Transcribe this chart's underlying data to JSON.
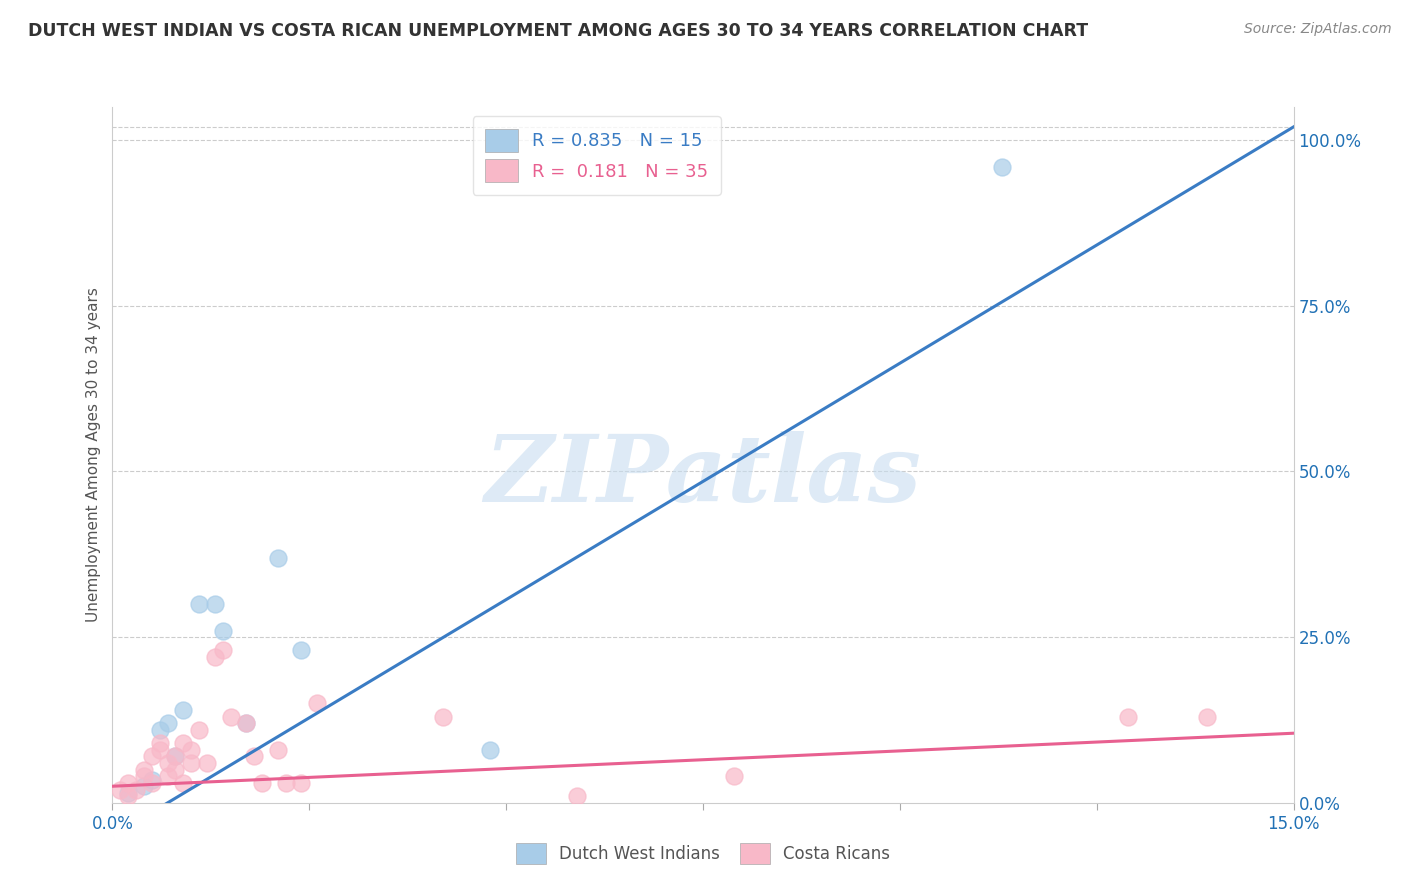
{
  "title": "DUTCH WEST INDIAN VS COSTA RICAN UNEMPLOYMENT AMONG AGES 30 TO 34 YEARS CORRELATION CHART",
  "source": "Source: ZipAtlas.com",
  "ylabel": "Unemployment Among Ages 30 to 34 years",
  "xmin": 0.0,
  "xmax": 0.15,
  "ymin": 0.0,
  "ymax": 1.05,
  "xticks": [
    0.0,
    0.025,
    0.05,
    0.075,
    0.1,
    0.125,
    0.15
  ],
  "yticks": [
    0.0,
    0.25,
    0.5,
    0.75,
    1.0
  ],
  "ytick_labels": [
    "0.0%",
    "25.0%",
    "50.0%",
    "75.0%",
    "100.0%"
  ],
  "xtick_labels": [
    "0.0%",
    "",
    "",
    "",
    "",
    "",
    "15.0%"
  ],
  "legend_blue_label": "R = 0.835   N = 15",
  "legend_pink_label": "R =  0.181   N = 35",
  "legend_bottom_blue": "Dutch West Indians",
  "legend_bottom_pink": "Costa Ricans",
  "blue_color": "#a8cce8",
  "pink_color": "#f8b8c8",
  "blue_line_color": "#3a7cc4",
  "pink_line_color": "#e86090",
  "watermark": "ZIPatlas",
  "dutch_x": [
    0.002,
    0.004,
    0.005,
    0.006,
    0.007,
    0.008,
    0.009,
    0.011,
    0.013,
    0.014,
    0.017,
    0.021,
    0.024,
    0.048,
    0.113
  ],
  "dutch_y": [
    0.015,
    0.025,
    0.035,
    0.11,
    0.12,
    0.07,
    0.14,
    0.3,
    0.3,
    0.26,
    0.12,
    0.37,
    0.23,
    0.08,
    0.96
  ],
  "costa_x": [
    0.001,
    0.002,
    0.002,
    0.003,
    0.004,
    0.004,
    0.005,
    0.005,
    0.006,
    0.006,
    0.007,
    0.007,
    0.008,
    0.008,
    0.009,
    0.009,
    0.01,
    0.01,
    0.011,
    0.012,
    0.013,
    0.014,
    0.015,
    0.017,
    0.018,
    0.019,
    0.021,
    0.022,
    0.024,
    0.026,
    0.042,
    0.059,
    0.079,
    0.129,
    0.139
  ],
  "costa_y": [
    0.02,
    0.01,
    0.03,
    0.02,
    0.04,
    0.05,
    0.07,
    0.03,
    0.08,
    0.09,
    0.04,
    0.06,
    0.05,
    0.07,
    0.03,
    0.09,
    0.06,
    0.08,
    0.11,
    0.06,
    0.22,
    0.23,
    0.13,
    0.12,
    0.07,
    0.03,
    0.08,
    0.03,
    0.03,
    0.15,
    0.13,
    0.01,
    0.04,
    0.13,
    0.13
  ],
  "blue_line_x": [
    0.0,
    0.15
  ],
  "blue_line_y": [
    -0.05,
    1.02
  ],
  "pink_line_x": [
    0.0,
    0.15
  ],
  "pink_line_y": [
    0.025,
    0.105
  ]
}
